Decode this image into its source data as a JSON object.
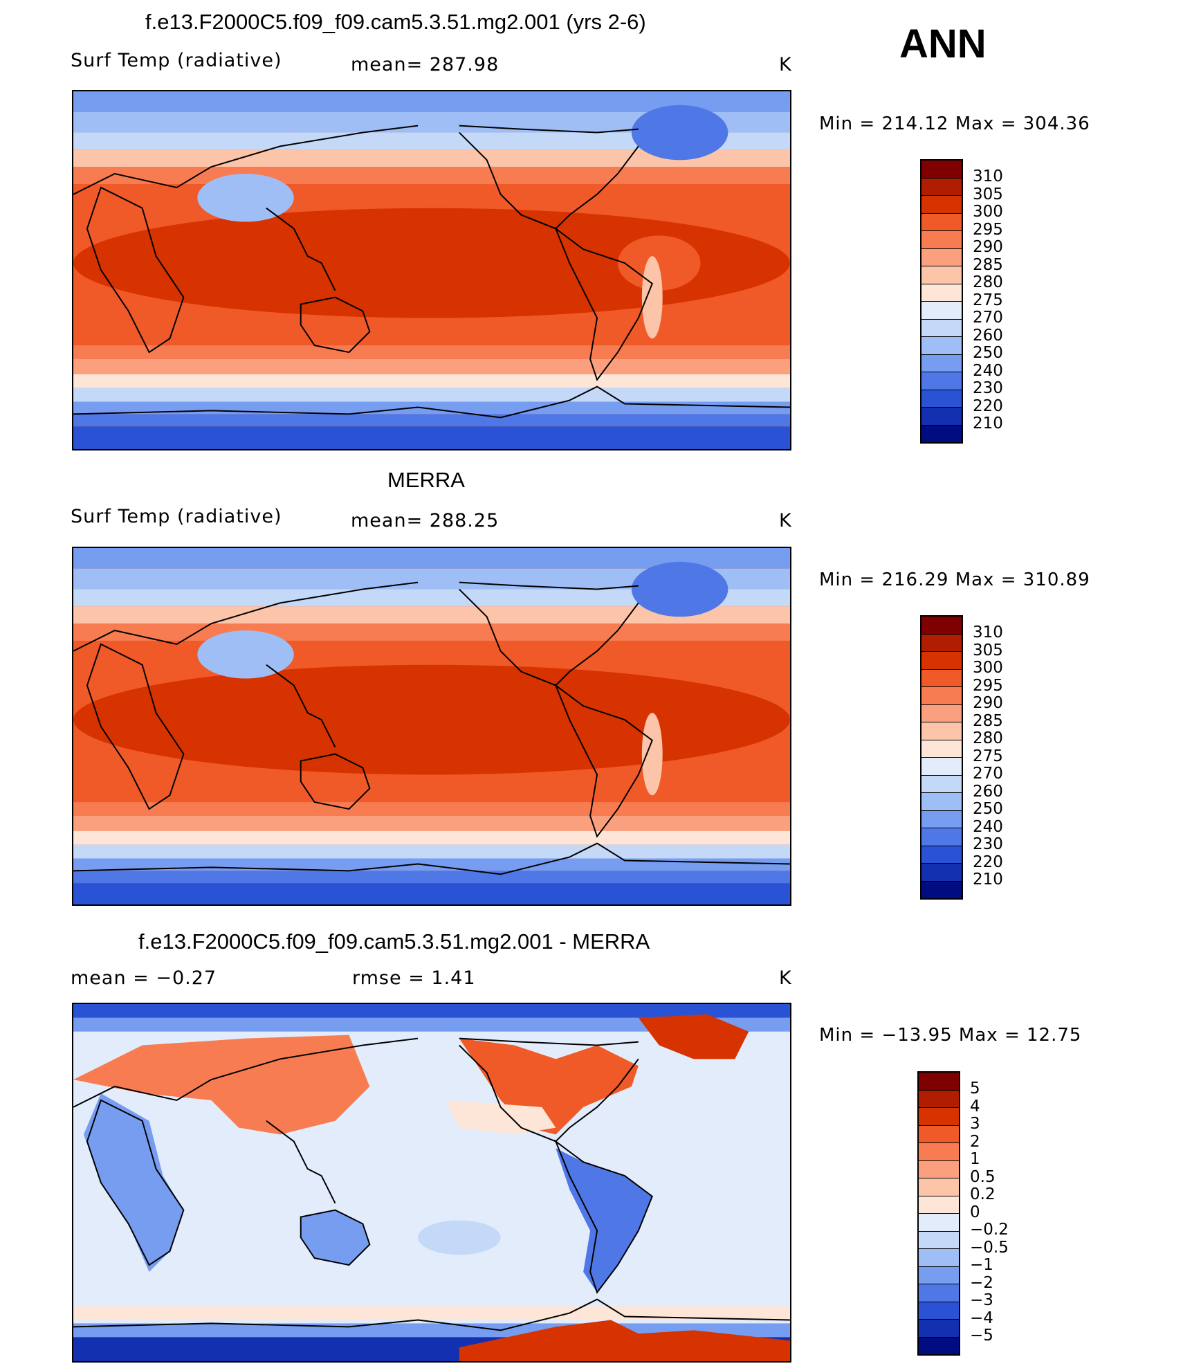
{
  "season": "ANN",
  "panels": [
    {
      "title": "f.e13.F2000C5.f09_f09.cam5.3.51.mg2.001 (yrs 2-6)",
      "left_label": "Surf Temp (radiative)",
      "center_label": "mean= 287.98",
      "units": "K",
      "stats": "Min = 214.12 Max = 304.36"
    },
    {
      "title": "MERRA",
      "left_label": "Surf Temp (radiative)",
      "center_label": "mean= 288.25",
      "units": "K",
      "stats": "Min = 216.29 Max = 310.89"
    },
    {
      "title": "f.e13.F2000C5.f09_f09.cam5.3.51.mg2.001 - MERRA",
      "left_label": "mean = −0.27",
      "center_label": "rmse = 1.41",
      "units": "K",
      "stats": "Min = −13.95 Max = 12.75"
    }
  ],
  "colorbar_abs": {
    "labels": [
      "310",
      "305",
      "300",
      "295",
      "290",
      "285",
      "280",
      "275",
      "270",
      "260",
      "250",
      "240",
      "230",
      "220",
      "210"
    ],
    "colors": [
      "#7f0000",
      "#b01d00",
      "#d63300",
      "#f05a28",
      "#f87c52",
      "#fba07e",
      "#fcc4a8",
      "#fde6d8",
      "#e2ecfb",
      "#c4d8f8",
      "#9fbef5",
      "#779df0",
      "#4f78e6",
      "#2a52d4",
      "#1230b0",
      "#000c80"
    ]
  },
  "colorbar_diff": {
    "labels": [
      "5",
      "4",
      "3",
      "2",
      "1",
      "0.5",
      "0.2",
      "0",
      "−0.2",
      "−0.5",
      "−1",
      "−2",
      "−3",
      "−4",
      "−5"
    ],
    "colors": [
      "#7f0000",
      "#b01d00",
      "#d63300",
      "#f05a28",
      "#f87c52",
      "#fba07e",
      "#fcc4a8",
      "#fde6d8",
      "#e2ecfb",
      "#c4d8f8",
      "#9fbef5",
      "#779df0",
      "#4f78e6",
      "#2a52d4",
      "#1230b0",
      "#000c80"
    ]
  }
}
